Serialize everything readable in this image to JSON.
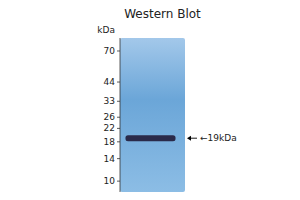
{
  "chart_data": {
    "type": "gel",
    "title": "Western Blot",
    "y_label": "kDa",
    "values": [
      19
    ],
    "value_labels": [
      "←19kDa"
    ],
    "data_labels": true,
    "color": "#2a2a4a",
    "log": "y",
    "grid": false,
    "ylim": [
      8.5,
      85
    ],
    "yticks": [
      70,
      44,
      33,
      26,
      22,
      18,
      14,
      10
    ]
  }
}
